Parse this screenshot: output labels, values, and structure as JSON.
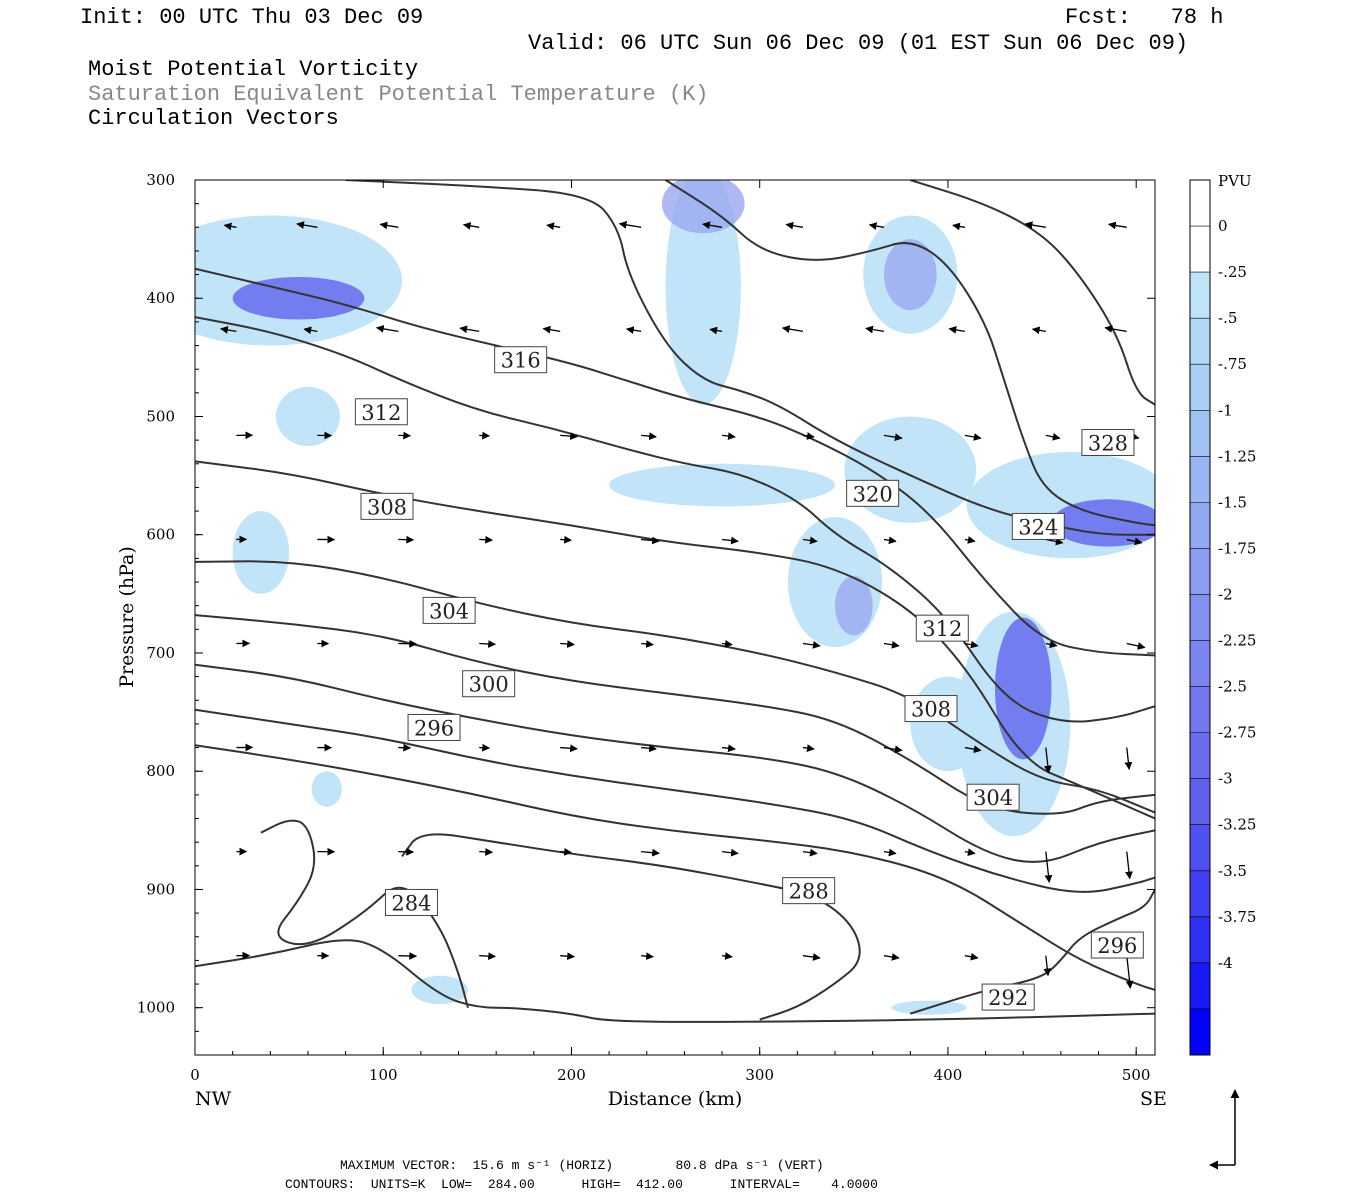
{
  "header": {
    "init": "Init: 00 UTC Thu 03 Dec 09",
    "fcst": "Fcst:   78 h",
    "valid": "Valid: 06 UTC Sun 06 Dec 09 (01 EST Sun 06 Dec 09)",
    "field1": "Moist Potential Vorticity",
    "field2": "Saturation Equivalent Potential Temperature (K)",
    "field3": "Circulation Vectors"
  },
  "footer": {
    "line1": "MAXIMUM VECTOR:  15.6 m s⁻¹ (HORIZ)        80.8 dPa s⁻¹ (VERT)",
    "line2": "CONTOURS:  UNITS=K  LOW=  284.00      HIGH=  412.00      INTERVAL=    4.0000"
  },
  "colors": {
    "pv_light": "#bfe3f8",
    "pv_mid": "#9aa8f0",
    "pv_dark": "#5f63ec",
    "contour": "#333333"
  },
  "chart_data": {
    "type": "contour",
    "xlabel": "Distance (km)",
    "ylabel": "Pressure (hPa)",
    "xlim": [
      0,
      510
    ],
    "ylim": [
      1040,
      300
    ],
    "x_ticks": [
      0,
      100,
      200,
      300,
      400,
      500
    ],
    "y_ticks": [
      300,
      400,
      500,
      600,
      700,
      800,
      900,
      1000
    ],
    "x_end_labels": {
      "left": "NW",
      "right": "SE"
    },
    "colorbar": {
      "unit": "PVU",
      "labels": [
        "0",
        "-.25",
        "-.5",
        "-.75",
        "-1",
        "-1.25",
        "-1.5",
        "-1.75",
        "-2",
        "-2.25",
        "-2.5",
        "-2.75",
        "-3",
        "-3.25",
        "-3.5",
        "-3.75",
        "-4"
      ],
      "colors": [
        "#ffffff",
        "#ffffff",
        "#bfe3f8",
        "#b1d9f7",
        "#a9cff6",
        "#a2c2f4",
        "#9bb4f3",
        "#94a8f2",
        "#8c9cf1",
        "#8490f0",
        "#7c84ef",
        "#7478ee",
        "#6c6cee",
        "#6060ee",
        "#5050f0",
        "#4040f2",
        "#2f2ff5",
        "#1a1af8",
        "#0000ff"
      ]
    },
    "contour_labels": [
      {
        "value": "316",
        "x": 173,
        "p": 452
      },
      {
        "value": "312",
        "x": 99,
        "p": 496
      },
      {
        "value": "308",
        "x": 102,
        "p": 576
      },
      {
        "value": "304",
        "x": 135,
        "p": 664
      },
      {
        "value": "300",
        "x": 156,
        "p": 726
      },
      {
        "value": "296",
        "x": 127,
        "p": 763
      },
      {
        "value": "284",
        "x": 115,
        "p": 911
      },
      {
        "value": "288",
        "x": 326,
        "p": 901
      },
      {
        "value": "292",
        "x": 432,
        "p": 991
      },
      {
        "value": "296",
        "x": 490,
        "p": 947
      },
      {
        "value": "304",
        "x": 424,
        "p": 822
      },
      {
        "value": "308",
        "x": 391,
        "p": 747
      },
      {
        "value": "312",
        "x": 397,
        "p": 679
      },
      {
        "value": "320",
        "x": 360,
        "p": 565
      },
      {
        "value": "324",
        "x": 448,
        "p": 593
      },
      {
        "value": "328",
        "x": 485,
        "p": 522
      }
    ],
    "contours": [
      {
        "v": 308,
        "pts": [
          [
            0,
            538
          ],
          [
            50,
            548
          ],
          [
            100,
            566
          ],
          [
            150,
            580
          ],
          [
            200,
            592
          ],
          [
            250,
            606
          ],
          [
            300,
            615
          ],
          [
            340,
            627
          ],
          [
            380,
            662
          ],
          [
            410,
            712
          ],
          [
            440,
            792
          ],
          [
            470,
            812
          ],
          [
            510,
            840
          ]
        ]
      },
      {
        "v": 304,
        "pts": [
          [
            0,
            623
          ],
          [
            50,
            622
          ],
          [
            100,
            636
          ],
          [
            150,
            658
          ],
          [
            200,
            675
          ],
          [
            250,
            685
          ],
          [
            300,
            700
          ],
          [
            340,
            716
          ],
          [
            380,
            736
          ],
          [
            420,
            780
          ],
          [
            450,
            808
          ],
          [
            480,
            815
          ],
          [
            510,
            835
          ]
        ]
      },
      {
        "v": 300,
        "pts": [
          [
            0,
            668
          ],
          [
            50,
            675
          ],
          [
            100,
            685
          ],
          [
            150,
            708
          ],
          [
            200,
            724
          ],
          [
            250,
            734
          ],
          [
            300,
            744
          ],
          [
            340,
            756
          ],
          [
            380,
            790
          ],
          [
            420,
            832
          ],
          [
            460,
            838
          ],
          [
            480,
            825
          ],
          [
            510,
            820
          ]
        ]
      },
      {
        "v": 296,
        "pts": [
          [
            0,
            710
          ],
          [
            50,
            720
          ],
          [
            100,
            740
          ],
          [
            150,
            756
          ],
          [
            200,
            770
          ],
          [
            250,
            780
          ],
          [
            300,
            788
          ],
          [
            340,
            800
          ],
          [
            380,
            830
          ],
          [
            420,
            870
          ],
          [
            450,
            880
          ],
          [
            480,
            860
          ],
          [
            510,
            850
          ]
        ]
      },
      {
        "v": 292,
        "pts": [
          [
            0,
            748
          ],
          [
            50,
            760
          ],
          [
            100,
            772
          ],
          [
            150,
            790
          ],
          [
            200,
            804
          ],
          [
            250,
            815
          ],
          [
            300,
            826
          ],
          [
            350,
            840
          ],
          [
            390,
            868
          ],
          [
            430,
            890
          ],
          [
            470,
            905
          ],
          [
            500,
            895
          ],
          [
            510,
            890
          ]
        ]
      },
      {
        "v": 288,
        "pts": [
          [
            0,
            778
          ],
          [
            50,
            790
          ],
          [
            100,
            804
          ],
          [
            150,
            820
          ],
          [
            200,
            838
          ],
          [
            250,
            850
          ],
          [
            300,
            858
          ],
          [
            350,
            868
          ],
          [
            400,
            890
          ],
          [
            440,
            930
          ],
          [
            470,
            960
          ],
          [
            500,
            980
          ],
          [
            510,
            985
          ]
        ]
      },
      {
        "v": 312,
        "pts": [
          [
            0,
            416
          ],
          [
            40,
            428
          ],
          [
            80,
            448
          ],
          [
            110,
            470
          ],
          [
            150,
            495
          ],
          [
            190,
            510
          ],
          [
            230,
            528
          ],
          [
            260,
            540
          ],
          [
            290,
            548
          ],
          [
            320,
            570
          ],
          [
            340,
            600
          ],
          [
            370,
            628
          ],
          [
            400,
            670
          ],
          [
            430,
            740
          ],
          [
            460,
            760
          ],
          [
            490,
            755
          ],
          [
            510,
            745
          ]
        ]
      },
      {
        "v": 316,
        "pts": [
          [
            0,
            375
          ],
          [
            40,
            390
          ],
          [
            80,
            405
          ],
          [
            120,
            425
          ],
          [
            160,
            440
          ],
          [
            200,
            455
          ],
          [
            230,
            470
          ],
          [
            260,
            485
          ],
          [
            300,
            500
          ],
          [
            330,
            520
          ],
          [
            360,
            545
          ],
          [
            390,
            580
          ],
          [
            420,
            640
          ],
          [
            450,
            690
          ],
          [
            480,
            700
          ],
          [
            510,
            702
          ]
        ]
      },
      {
        "v": 320,
        "pts": [
          [
            80,
            300
          ],
          [
            150,
            305
          ],
          [
            210,
            312
          ],
          [
            225,
            340
          ],
          [
            230,
            380
          ],
          [
            250,
            440
          ],
          [
            270,
            470
          ],
          [
            290,
            478
          ],
          [
            310,
            490
          ],
          [
            340,
            520
          ],
          [
            380,
            550
          ],
          [
            420,
            578
          ],
          [
            450,
            590
          ],
          [
            480,
            600
          ],
          [
            510,
            600
          ]
        ]
      },
      {
        "v": 324,
        "pts": [
          [
            250,
            300
          ],
          [
            280,
            330
          ],
          [
            300,
            360
          ],
          [
            330,
            370
          ],
          [
            360,
            360
          ],
          [
            380,
            350
          ],
          [
            400,
            370
          ],
          [
            420,
            420
          ],
          [
            430,
            470
          ],
          [
            440,
            520
          ],
          [
            450,
            560
          ],
          [
            470,
            580
          ],
          [
            500,
            590
          ],
          [
            510,
            592
          ]
        ]
      },
      {
        "v": 328,
        "pts": [
          [
            380,
            300
          ],
          [
            420,
            320
          ],
          [
            450,
            345
          ],
          [
            470,
            380
          ],
          [
            490,
            430
          ],
          [
            500,
            480
          ],
          [
            510,
            490
          ]
        ]
      },
      {
        "v": 284,
        "pts": [
          [
            0,
            965
          ],
          [
            40,
            955
          ],
          [
            80,
            940
          ],
          [
            100,
            950
          ],
          [
            130,
            990
          ],
          [
            150,
            1000
          ],
          [
            170,
            1000
          ],
          [
            200,
            1005
          ],
          [
            220,
            1012
          ],
          [
            300,
            1012
          ],
          [
            400,
            1010
          ],
          [
            510,
            1005
          ]
        ]
      },
      {
        "v": 284,
        "pts": [
          [
            35,
            852
          ],
          [
            50,
            840
          ],
          [
            60,
            845
          ],
          [
            65,
            880
          ],
          [
            55,
            910
          ],
          [
            40,
            940
          ],
          [
            60,
            950
          ],
          [
            90,
            920
          ],
          [
            110,
            890
          ],
          [
            130,
            930
          ],
          [
            140,
            970
          ],
          [
            145,
            1000
          ]
        ]
      },
      {
        "v": 288,
        "pts": [
          [
            110,
            872
          ],
          [
            120,
            850
          ],
          [
            160,
            860
          ],
          [
            200,
            870
          ],
          [
            250,
            880
          ],
          [
            300,
            895
          ],
          [
            330,
            905
          ],
          [
            350,
            930
          ],
          [
            355,
            960
          ],
          [
            340,
            980
          ],
          [
            320,
            1000
          ],
          [
            300,
            1010
          ]
        ]
      },
      {
        "v": 292,
        "pts": [
          [
            380,
            1005
          ],
          [
            420,
            985
          ],
          [
            450,
            975
          ],
          [
            460,
            960
          ],
          [
            470,
            940
          ],
          [
            490,
            925
          ],
          [
            505,
            915
          ],
          [
            510,
            900
          ]
        ]
      }
    ],
    "pv_blobs": [
      {
        "level": 1,
        "cx": 40,
        "cy": 385,
        "rx": 70,
        "ry": 55
      },
      {
        "level": 3,
        "cx": 55,
        "cy": 400,
        "rx": 35,
        "ry": 18
      },
      {
        "level": 1,
        "cx": 60,
        "cy": 500,
        "rx": 17,
        "ry": 25
      },
      {
        "level": 1,
        "cx": 35,
        "cy": 615,
        "rx": 15,
        "ry": 35
      },
      {
        "level": 1,
        "cx": 70,
        "cy": 815,
        "rx": 8,
        "ry": 15
      },
      {
        "level": 1,
        "cx": 270,
        "cy": 390,
        "rx": 20,
        "ry": 100
      },
      {
        "level": 2,
        "cx": 270,
        "cy": 320,
        "rx": 22,
        "ry": 25
      },
      {
        "level": 1,
        "cx": 380,
        "cy": 380,
        "rx": 25,
        "ry": 50
      },
      {
        "level": 2,
        "cx": 380,
        "cy": 380,
        "rx": 14,
        "ry": 30
      },
      {
        "level": 1,
        "cx": 280,
        "cy": 558,
        "rx": 60,
        "ry": 18
      },
      {
        "level": 1,
        "cx": 340,
        "cy": 640,
        "rx": 25,
        "ry": 55
      },
      {
        "level": 2,
        "cx": 350,
        "cy": 660,
        "rx": 10,
        "ry": 25
      },
      {
        "level": 1,
        "cx": 380,
        "cy": 545,
        "rx": 35,
        "ry": 45
      },
      {
        "level": 1,
        "cx": 465,
        "cy": 575,
        "rx": 55,
        "ry": 45
      },
      {
        "level": 3,
        "cx": 485,
        "cy": 590,
        "rx": 30,
        "ry": 20
      },
      {
        "level": 1,
        "cx": 435,
        "cy": 760,
        "rx": 30,
        "ry": 95
      },
      {
        "level": 3,
        "cx": 440,
        "cy": 730,
        "rx": 15,
        "ry": 60
      },
      {
        "level": 1,
        "cx": 400,
        "cy": 760,
        "rx": 20,
        "ry": 40
      },
      {
        "level": 1,
        "cx": 130,
        "cy": 985,
        "rx": 15,
        "ry": 12
      },
      {
        "level": 1,
        "cx": 390,
        "cy": 1000,
        "rx": 20,
        "ry": 6
      }
    ]
  }
}
